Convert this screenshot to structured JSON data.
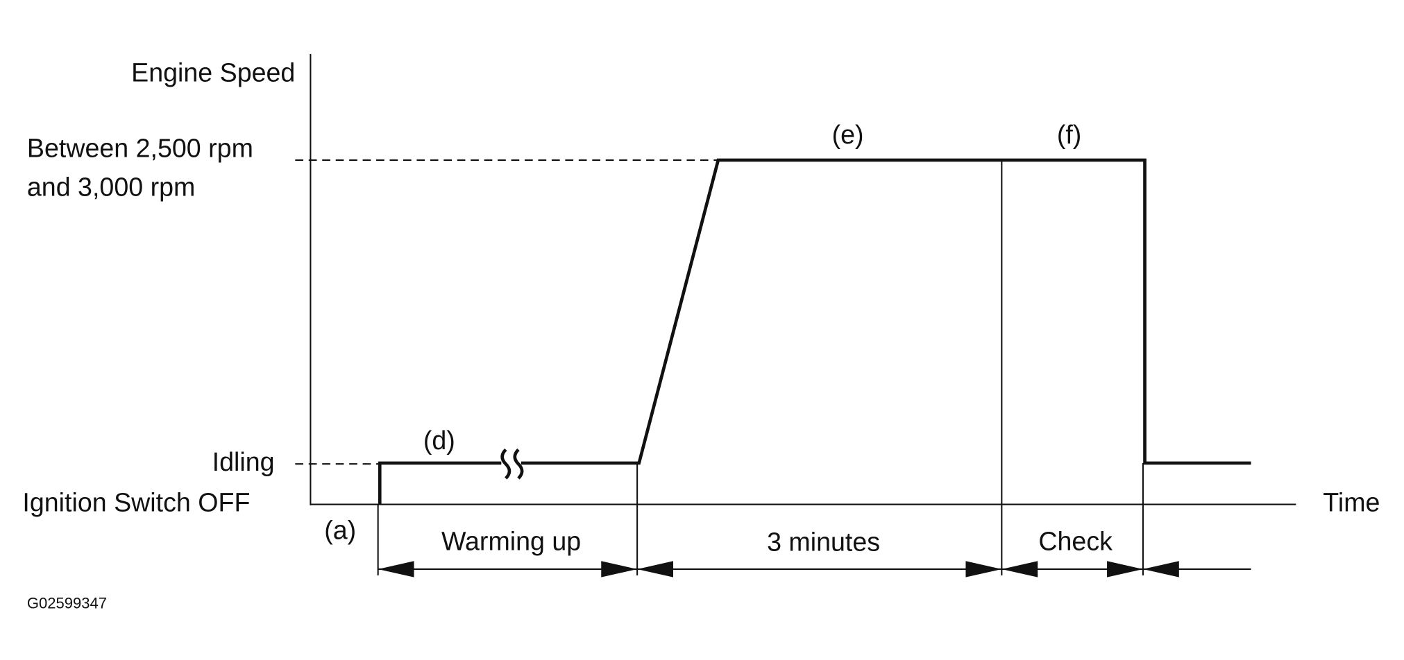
{
  "axes": {
    "y_title": "Engine Speed",
    "x_title": "Time"
  },
  "levels": {
    "high": [
      "Between 2,500 rpm",
      "and 3,000 rpm"
    ],
    "idle": "Idling",
    "off": "Ignition Switch OFF"
  },
  "markers": {
    "a": "(a)",
    "d": "(d)",
    "e": "(e)",
    "f": "(f)"
  },
  "phases": [
    "Warming up",
    "3 minutes",
    "Check"
  ],
  "figure_id": "G02599347"
}
